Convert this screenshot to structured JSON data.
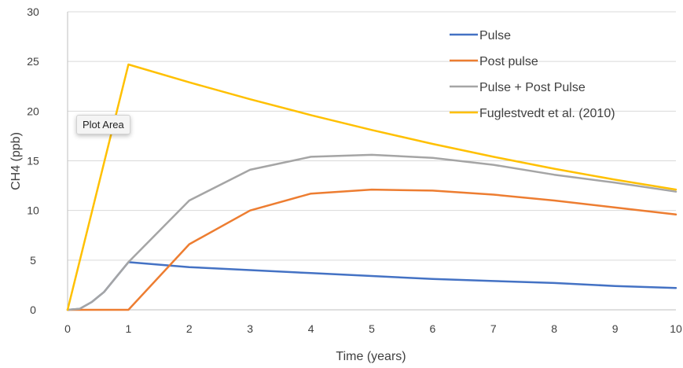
{
  "chart_data": {
    "type": "line",
    "title": "",
    "xlabel": "Time (years)",
    "ylabel": "CH4 (ppb)",
    "xlim": [
      0,
      10
    ],
    "ylim": [
      0,
      30
    ],
    "xticks": [
      0,
      1,
      2,
      3,
      4,
      5,
      6,
      7,
      8,
      9,
      10
    ],
    "yticks": [
      0,
      5,
      10,
      15,
      20,
      25,
      30
    ],
    "grid": "horizontal",
    "legend_position": "top-right",
    "series": [
      {
        "name": "Pulse",
        "color": "#4472C4",
        "x": [
          0,
          0.2,
          0.4,
          0.6,
          0.8,
          1,
          2,
          3,
          4,
          5,
          6,
          7,
          8,
          9,
          10
        ],
        "y": [
          0,
          0.1,
          0.8,
          1.8,
          3.3,
          4.8,
          4.3,
          4.0,
          3.7,
          3.4,
          3.1,
          2.9,
          2.7,
          2.4,
          2.2
        ]
      },
      {
        "name": "Post pulse",
        "color": "#ED7D31",
        "x": [
          0,
          1,
          2,
          3,
          4,
          5,
          6,
          7,
          8,
          9,
          10
        ],
        "y": [
          0,
          0,
          6.6,
          10.0,
          11.7,
          12.1,
          12.0,
          11.6,
          11.0,
          10.3,
          9.6
        ]
      },
      {
        "name": "Pulse + Post Pulse",
        "color": "#A5A5A5",
        "x": [
          0,
          0.2,
          0.4,
          0.6,
          0.8,
          1,
          2,
          3,
          4,
          5,
          6,
          7,
          8,
          9,
          10
        ],
        "y": [
          0,
          0.1,
          0.8,
          1.8,
          3.3,
          4.8,
          11.0,
          14.1,
          15.4,
          15.6,
          15.3,
          14.6,
          13.6,
          12.8,
          11.9
        ]
      },
      {
        "name": "Fuglestvedt et al. (2010)",
        "color": "#FFC000",
        "x": [
          0,
          1,
          2,
          3,
          4,
          5,
          6,
          7,
          8,
          9,
          10
        ],
        "y": [
          0,
          24.7,
          22.9,
          21.2,
          19.6,
          18.1,
          16.7,
          15.4,
          14.2,
          13.1,
          12.1
        ]
      }
    ]
  },
  "tooltip": {
    "label": "Plot Area"
  }
}
